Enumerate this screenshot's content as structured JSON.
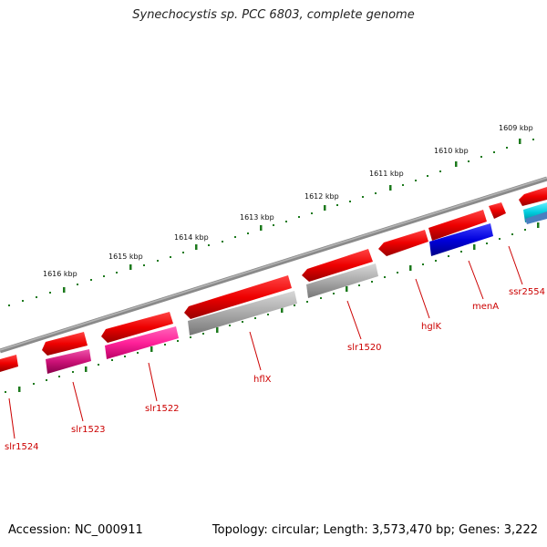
{
  "title": "Synechocystis sp. PCC 6803, complete genome",
  "footer": {
    "accession": "Accession: NC_000911",
    "topology": "Topology: circular; Length: 3,573,470 bp; Genes: 3,222"
  },
  "colors": {
    "backbone": "#777777",
    "ticks": "#1d7a1d",
    "forward_genes": "#ee0000",
    "label": "#cc0000"
  },
  "kbp_ticks": [
    {
      "label": "1616 kbp"
    },
    {
      "label": "1615 kbp"
    },
    {
      "label": "1614 kbp"
    },
    {
      "label": "1613 kbp"
    },
    {
      "label": "1612 kbp"
    },
    {
      "label": "1611 kbp"
    },
    {
      "label": "1610 kbp"
    },
    {
      "label": "1609 kbp"
    }
  ],
  "genes": [
    {
      "name": "slr1524",
      "color": "#cc0066"
    },
    {
      "name": "slr1523",
      "color": "#cc0077"
    },
    {
      "name": "slr1522",
      "color": "#ff2299"
    },
    {
      "name": "hflX",
      "color": "#aaaaaa"
    },
    {
      "name": "slr1520",
      "color": "#aaaaaa"
    },
    {
      "name": "hglK",
      "color": "#ee0000"
    },
    {
      "name": "menA",
      "color": "#0000cc"
    },
    {
      "name": "ssr2554",
      "color": "#00ccdd"
    }
  ]
}
